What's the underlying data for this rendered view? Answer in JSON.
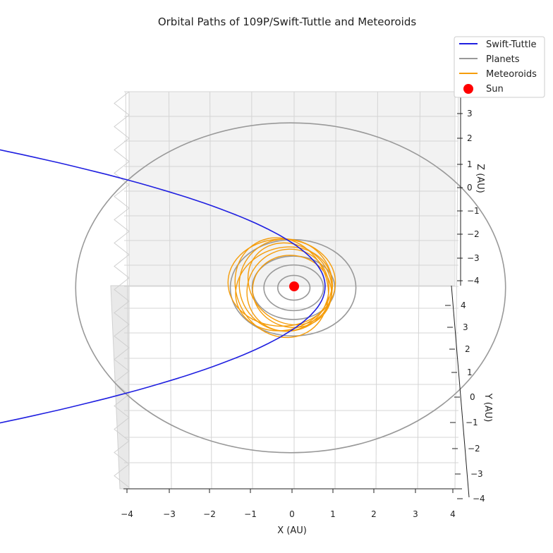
{
  "chart_data": {
    "type": "line",
    "title": "Orbital Paths of 109P/Swift-Tuttle and Meteoroids",
    "xlabel": "X (AU)",
    "ylabel": "Y (AU)",
    "zlabel": "Z (AU)",
    "xlim": [
      -4,
      4
    ],
    "ylim": [
      -4,
      4
    ],
    "zlim": [
      -4,
      4
    ],
    "x_ticks": [
      "−4",
      "−3",
      "−2",
      "−1",
      "0",
      "1",
      "2",
      "3",
      "4"
    ],
    "y_ticks": [
      "−4",
      "−3",
      "−2",
      "−1",
      "0",
      "1",
      "2",
      "3",
      "4"
    ],
    "z_ticks": [
      "−4",
      "−3",
      "−2",
      "−1",
      "0",
      "1",
      "2",
      "3"
    ],
    "projection": "3d",
    "view": "near top-down",
    "grid": true,
    "legend_position": "top-right",
    "legend": [
      {
        "label": "Swift-Tuttle",
        "color": "#1f1fe0",
        "kind": "line"
      },
      {
        "label": "Planets",
        "color": "#999999",
        "kind": "line"
      },
      {
        "label": "Meteoroids",
        "color": "#f59d0b",
        "kind": "line"
      },
      {
        "label": "Sun",
        "color": "#ff0000",
        "kind": "marker"
      }
    ],
    "series": [
      {
        "name": "Swift-Tuttle",
        "kind": "comet_orbit",
        "perihelion_x_au": 0.75,
        "semi_latus_rectum_au": 1.9,
        "color": "#1f1fe0"
      },
      {
        "name": "Planets",
        "kind": "circular_orbits",
        "radii_au": [
          0.39,
          0.72,
          1.0,
          1.52,
          5.2
        ],
        "color": "#999999"
      },
      {
        "name": "Meteoroids",
        "kind": "ellipses",
        "color": "#f59d0b",
        "orbits": [
          {
            "cx": -0.3,
            "cy": 0.15,
            "rx": 1.15,
            "ry": 0.85,
            "angle_deg": 0
          },
          {
            "cx": -0.2,
            "cy": 0.05,
            "rx": 1.0,
            "ry": 0.9,
            "angle_deg": 25
          },
          {
            "cx": -0.25,
            "cy": -0.1,
            "rx": 1.05,
            "ry": 0.8,
            "angle_deg": -20
          },
          {
            "cx": -0.1,
            "cy": 0.1,
            "rx": 0.95,
            "ry": 0.75,
            "angle_deg": 40
          },
          {
            "cx": -0.3,
            "cy": -0.05,
            "rx": 1.1,
            "ry": 0.88,
            "angle_deg": 60
          },
          {
            "cx": -0.15,
            "cy": -0.15,
            "rx": 0.9,
            "ry": 0.78,
            "angle_deg": -45
          },
          {
            "cx": -0.05,
            "cy": -0.2,
            "rx": 0.85,
            "ry": 0.7,
            "angle_deg": 15
          }
        ]
      },
      {
        "name": "Sun",
        "kind": "marker",
        "x": 0,
        "y": 0,
        "z": 0,
        "color": "#ff0000"
      }
    ]
  }
}
